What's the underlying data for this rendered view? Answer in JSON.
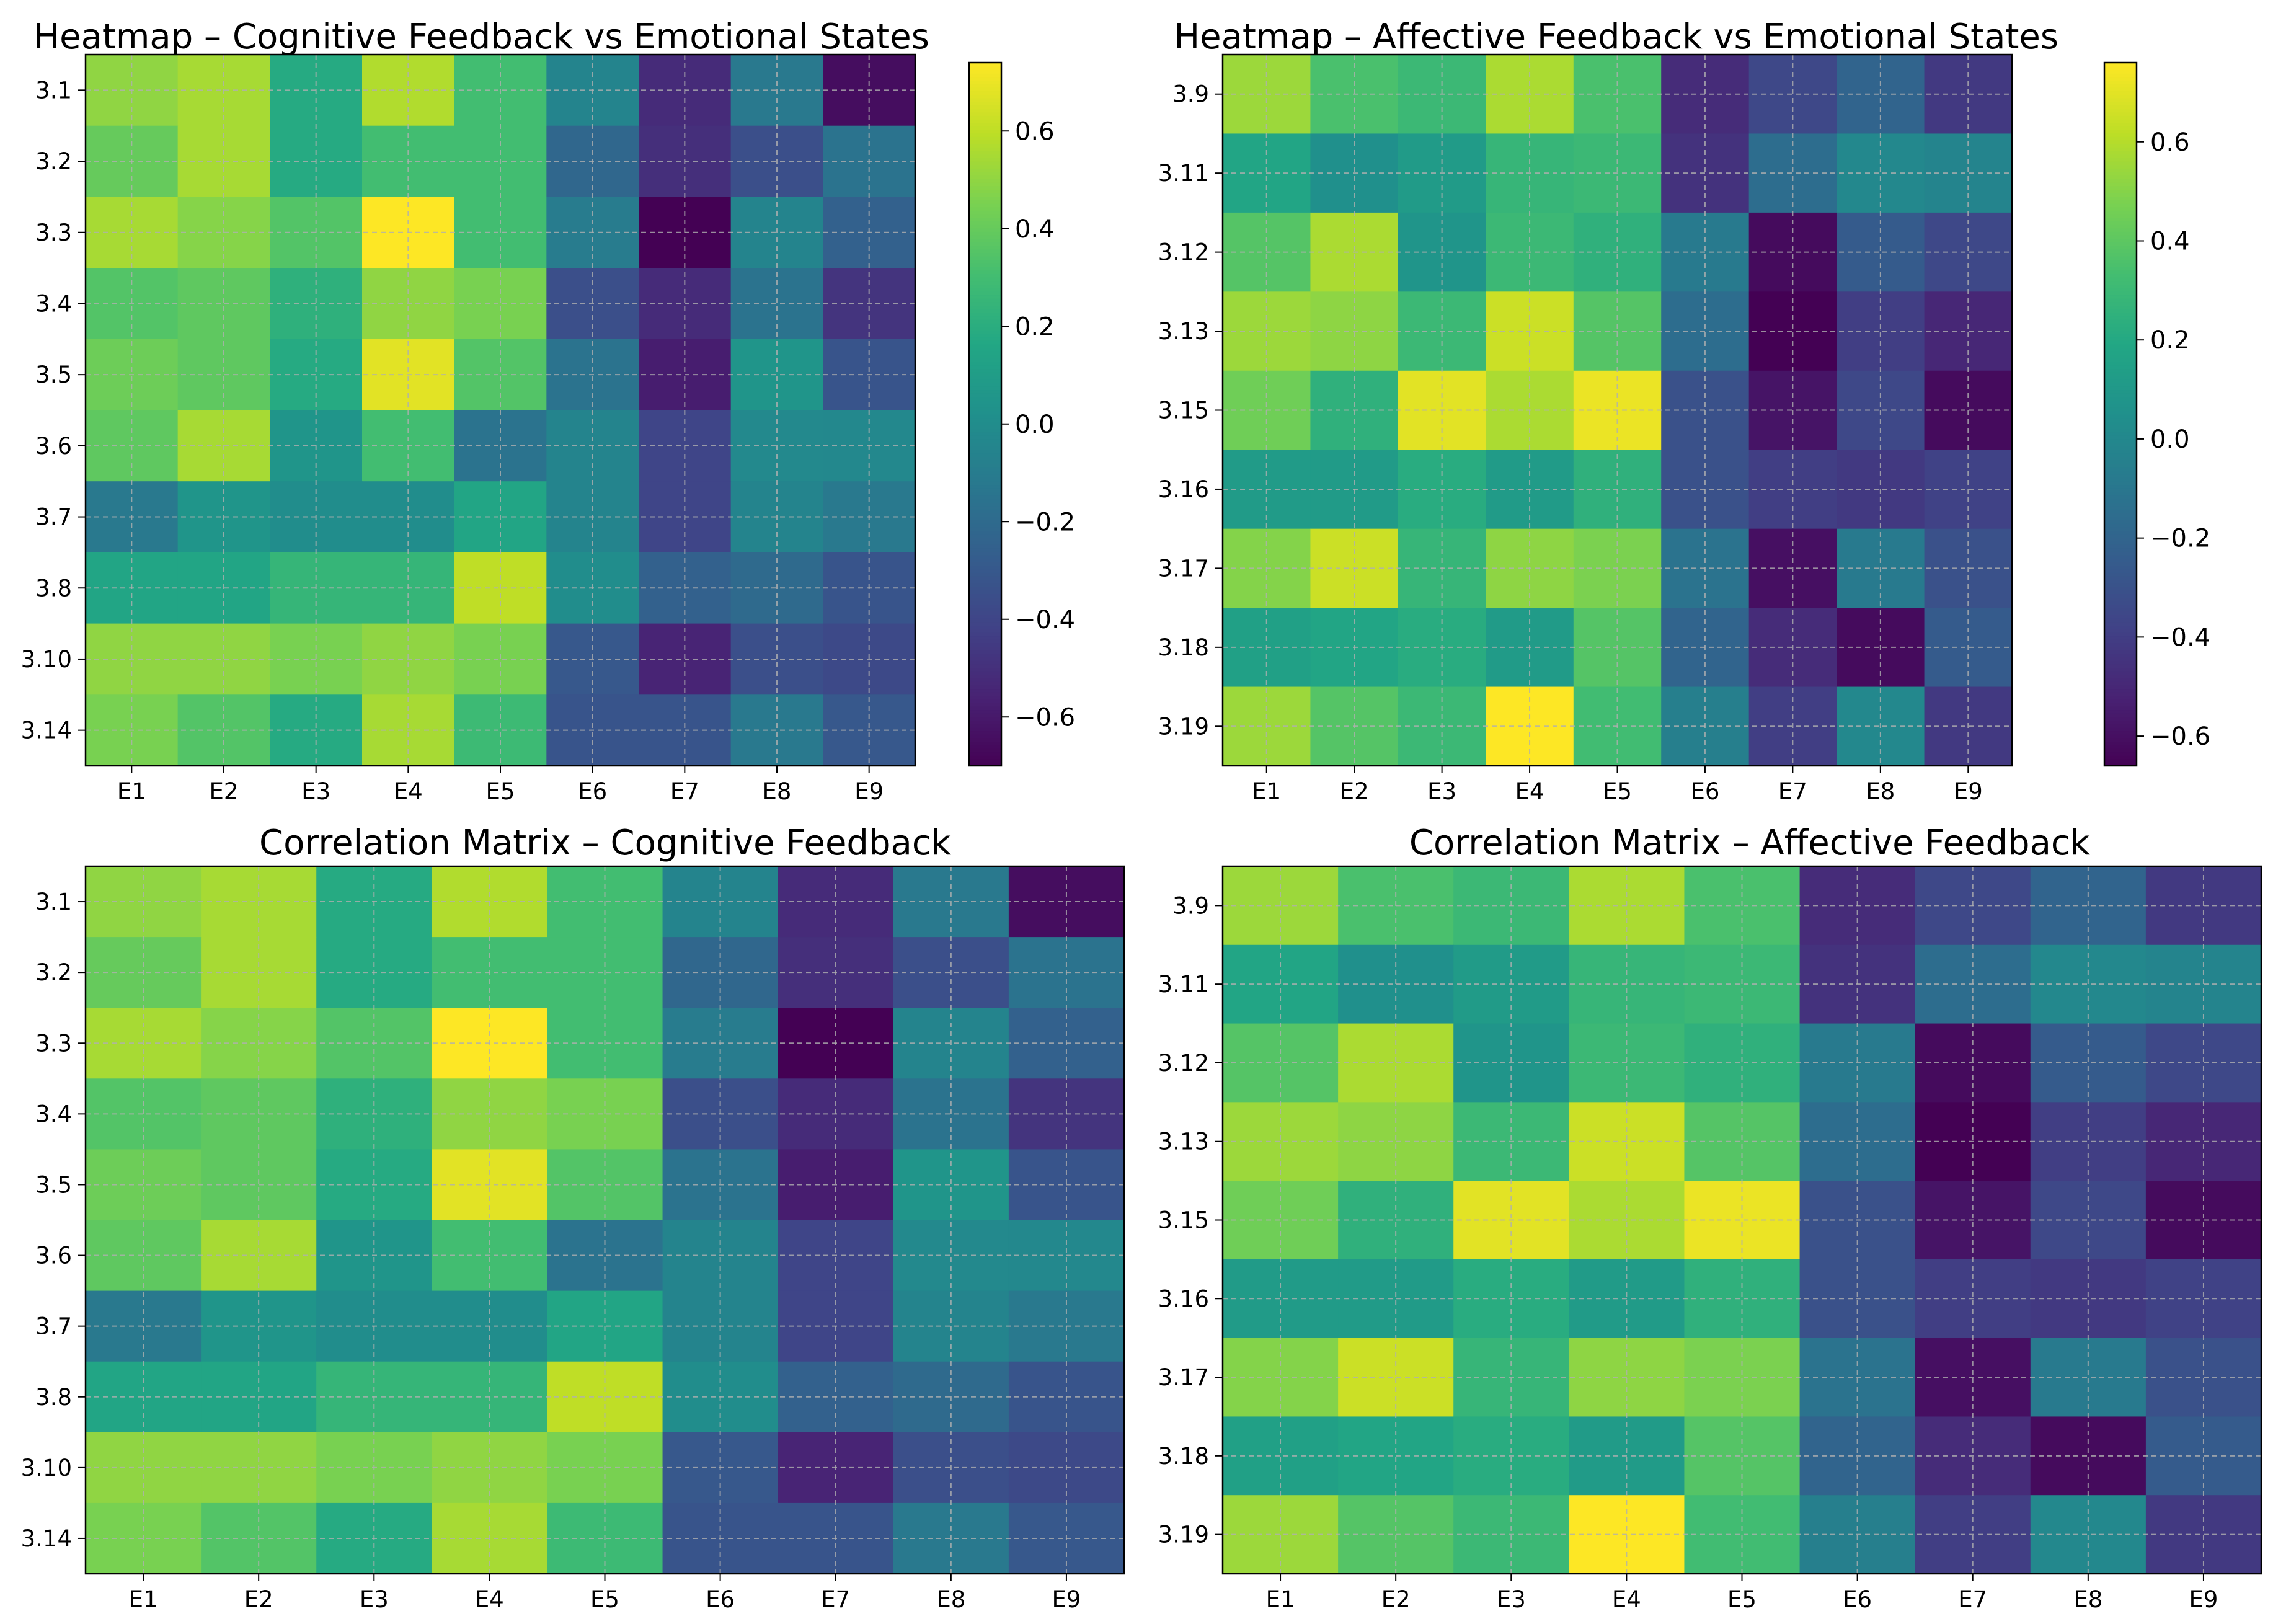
{
  "chart_data": [
    {
      "type": "heatmap",
      "title": "Heatmap – Cognitive Feedback vs Emotional States",
      "xlabel": "",
      "ylabel": "",
      "x": [
        "E1",
        "E2",
        "E3",
        "E4",
        "E5",
        "E6",
        "E7",
        "E8",
        "E9"
      ],
      "y": [
        "3.1",
        "3.2",
        "3.3",
        "3.4",
        "3.5",
        "3.6",
        "3.7",
        "3.8",
        "3.10",
        "3.14"
      ],
      "colorbar": true,
      "colorbar_range": [
        -0.7,
        0.74
      ],
      "colorbar_ticks": [
        "0.6",
        "0.4",
        "0.2",
        "0.0",
        "−0.2",
        "−0.4",
        "−0.6"
      ],
      "grid": true,
      "values": [
        [
          0.5,
          0.55,
          0.18,
          0.57,
          0.3,
          -0.05,
          -0.52,
          -0.12,
          -0.65
        ],
        [
          0.4,
          0.55,
          0.18,
          0.3,
          0.3,
          -0.22,
          -0.5,
          -0.35,
          -0.15
        ],
        [
          0.55,
          0.48,
          0.35,
          0.74,
          0.3,
          -0.1,
          -0.7,
          -0.05,
          -0.25
        ],
        [
          0.35,
          0.38,
          0.22,
          0.5,
          0.45,
          -0.35,
          -0.52,
          -0.15,
          -0.48
        ],
        [
          0.42,
          0.38,
          0.18,
          0.68,
          0.35,
          -0.15,
          -0.58,
          0.05,
          -0.32
        ],
        [
          0.38,
          0.55,
          0.05,
          0.3,
          -0.15,
          -0.05,
          -0.4,
          -0.02,
          -0.03
        ],
        [
          -0.12,
          0.05,
          0.0,
          0.0,
          0.15,
          -0.05,
          -0.4,
          -0.05,
          -0.12
        ],
        [
          0.15,
          0.15,
          0.25,
          0.25,
          0.6,
          0.0,
          -0.25,
          -0.2,
          -0.32
        ],
        [
          0.5,
          0.5,
          0.45,
          0.5,
          0.45,
          -0.3,
          -0.55,
          -0.35,
          -0.38
        ],
        [
          0.45,
          0.35,
          0.18,
          0.55,
          0.28,
          -0.32,
          -0.32,
          -0.12,
          -0.3
        ]
      ]
    },
    {
      "type": "heatmap",
      "title": "Heatmap – Affective Feedback vs Emotional States",
      "xlabel": "",
      "ylabel": "",
      "x": [
        "E1",
        "E2",
        "E3",
        "E4",
        "E5",
        "E6",
        "E7",
        "E8",
        "E9"
      ],
      "y": [
        "3.9",
        "3.11",
        "3.12",
        "3.13",
        "3.15",
        "3.16",
        "3.17",
        "3.18",
        "3.19"
      ],
      "colorbar": true,
      "colorbar_range": [
        -0.66,
        0.76
      ],
      "colorbar_ticks": [
        "0.6",
        "0.4",
        "0.2",
        "0.0",
        "−0.2",
        "−0.4",
        "−0.6"
      ],
      "grid": true,
      "values": [
        [
          0.55,
          0.35,
          0.3,
          0.58,
          0.35,
          -0.48,
          -0.35,
          -0.2,
          -0.42
        ],
        [
          0.18,
          0.05,
          0.12,
          0.28,
          0.3,
          -0.45,
          -0.15,
          0.0,
          -0.02
        ],
        [
          0.38,
          0.58,
          0.08,
          0.3,
          0.25,
          -0.08,
          -0.62,
          -0.25,
          -0.35
        ],
        [
          0.55,
          0.52,
          0.3,
          0.65,
          0.38,
          -0.15,
          -0.66,
          -0.4,
          -0.5
        ],
        [
          0.45,
          0.25,
          0.7,
          0.58,
          0.72,
          -0.3,
          -0.58,
          -0.35,
          -0.62
        ],
        [
          0.12,
          0.12,
          0.22,
          0.12,
          0.25,
          -0.3,
          -0.4,
          -0.42,
          -0.38
        ],
        [
          0.5,
          0.65,
          0.28,
          0.52,
          0.48,
          -0.12,
          -0.6,
          -0.08,
          -0.3
        ],
        [
          0.15,
          0.18,
          0.22,
          0.12,
          0.38,
          -0.2,
          -0.48,
          -0.62,
          -0.25
        ],
        [
          0.55,
          0.38,
          0.3,
          0.76,
          0.32,
          -0.05,
          -0.4,
          0.0,
          -0.42
        ]
      ]
    },
    {
      "type": "heatmap",
      "title": "Correlation Matrix – Cognitive Feedback",
      "xlabel": "",
      "ylabel": "",
      "x": [
        "E1",
        "E2",
        "E3",
        "E4",
        "E5",
        "E6",
        "E7",
        "E8",
        "E9"
      ],
      "y": [
        "3.1",
        "3.2",
        "3.3",
        "3.4",
        "3.5",
        "3.6",
        "3.7",
        "3.8",
        "3.10",
        "3.14"
      ],
      "colorbar": false,
      "colorbar_range": [
        -0.7,
        0.74
      ],
      "grid": true,
      "values": [
        [
          0.5,
          0.55,
          0.18,
          0.57,
          0.3,
          -0.05,
          -0.52,
          -0.12,
          -0.65
        ],
        [
          0.4,
          0.55,
          0.18,
          0.3,
          0.3,
          -0.22,
          -0.5,
          -0.35,
          -0.15
        ],
        [
          0.55,
          0.48,
          0.35,
          0.74,
          0.3,
          -0.1,
          -0.7,
          -0.05,
          -0.25
        ],
        [
          0.35,
          0.38,
          0.22,
          0.5,
          0.45,
          -0.35,
          -0.52,
          -0.15,
          -0.48
        ],
        [
          0.42,
          0.38,
          0.18,
          0.68,
          0.35,
          -0.15,
          -0.58,
          0.05,
          -0.32
        ],
        [
          0.38,
          0.55,
          0.05,
          0.3,
          -0.15,
          -0.05,
          -0.4,
          -0.02,
          -0.03
        ],
        [
          -0.12,
          0.05,
          0.0,
          0.0,
          0.15,
          -0.05,
          -0.4,
          -0.05,
          -0.12
        ],
        [
          0.15,
          0.15,
          0.25,
          0.25,
          0.6,
          0.0,
          -0.25,
          -0.2,
          -0.32
        ],
        [
          0.5,
          0.5,
          0.45,
          0.5,
          0.45,
          -0.3,
          -0.55,
          -0.35,
          -0.38
        ],
        [
          0.45,
          0.35,
          0.18,
          0.55,
          0.28,
          -0.32,
          -0.32,
          -0.12,
          -0.3
        ]
      ]
    },
    {
      "type": "heatmap",
      "title": "Correlation Matrix – Affective Feedback",
      "xlabel": "",
      "ylabel": "",
      "x": [
        "E1",
        "E2",
        "E3",
        "E4",
        "E5",
        "E6",
        "E7",
        "E8",
        "E9"
      ],
      "y": [
        "3.9",
        "3.11",
        "3.12",
        "3.13",
        "3.15",
        "3.16",
        "3.17",
        "3.18",
        "3.19"
      ],
      "colorbar": false,
      "colorbar_range": [
        -0.66,
        0.76
      ],
      "grid": true,
      "values": [
        [
          0.55,
          0.35,
          0.3,
          0.58,
          0.35,
          -0.48,
          -0.35,
          -0.2,
          -0.42
        ],
        [
          0.18,
          0.05,
          0.12,
          0.28,
          0.3,
          -0.45,
          -0.15,
          0.0,
          -0.02
        ],
        [
          0.38,
          0.58,
          0.08,
          0.3,
          0.25,
          -0.08,
          -0.62,
          -0.25,
          -0.35
        ],
        [
          0.55,
          0.52,
          0.3,
          0.65,
          0.38,
          -0.15,
          -0.66,
          -0.4,
          -0.5
        ],
        [
          0.45,
          0.25,
          0.7,
          0.58,
          0.72,
          -0.3,
          -0.58,
          -0.35,
          -0.62
        ],
        [
          0.12,
          0.12,
          0.22,
          0.12,
          0.25,
          -0.3,
          -0.4,
          -0.42,
          -0.38
        ],
        [
          0.5,
          0.65,
          0.28,
          0.52,
          0.48,
          -0.12,
          -0.6,
          -0.08,
          -0.3
        ],
        [
          0.15,
          0.18,
          0.22,
          0.12,
          0.38,
          -0.2,
          -0.48,
          -0.62,
          -0.25
        ],
        [
          0.55,
          0.38,
          0.3,
          0.76,
          0.32,
          -0.05,
          -0.4,
          0.0,
          -0.42
        ]
      ]
    }
  ]
}
